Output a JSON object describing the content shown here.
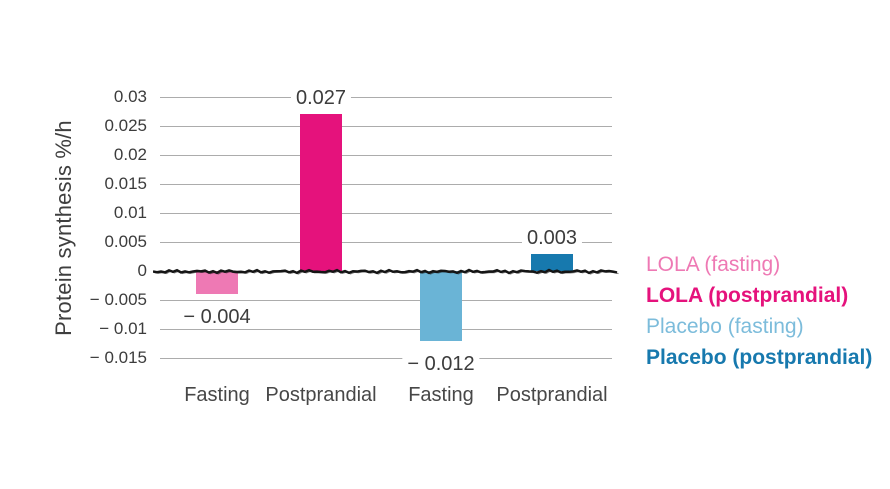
{
  "chart_data": {
    "type": "bar",
    "title": "",
    "xlabel": "",
    "ylabel": "Protein synthesis %/h",
    "ylim": [
      -0.015,
      0.03
    ],
    "ytick_step": 0.005,
    "yticks": [
      0.03,
      0.025,
      0.02,
      0.015,
      0.01,
      0.005,
      0,
      -0.005,
      -0.01,
      -0.015
    ],
    "ytick_labels": [
      "0.03",
      "0.025",
      "0.02",
      "0.015",
      "0.01",
      "0.005",
      "0",
      "− 0.005",
      "− 0.01",
      "− 0.015"
    ],
    "grid": true,
    "zero_line_style": "hand-drawn black stroke",
    "categories": [
      "Fasting",
      "Postprandial",
      "Fasting",
      "Postprandial"
    ],
    "bars": [
      {
        "name": "LOLA (fasting)",
        "category": "Fasting",
        "value": -0.004,
        "label": "− 0.004",
        "color": "#ee79b4"
      },
      {
        "name": "LOLA (postprandial)",
        "category": "Postprandial",
        "value": 0.027,
        "label": "0.027",
        "color": "#e5127c"
      },
      {
        "name": "Placebo (fasting)",
        "category": "Fasting",
        "value": -0.012,
        "label": "− 0.012",
        "color": "#6ab4d6"
      },
      {
        "name": "Placebo (postprandial)",
        "category": "Postprandial",
        "value": 0.003,
        "label": "0.003",
        "color": "#1779ae"
      }
    ],
    "legend": {
      "position": "right",
      "entries": [
        {
          "label": "LOLA (fasting)",
          "color": "#ee79b4",
          "bold": false
        },
        {
          "label": "LOLA (postprandial)",
          "color": "#e5127c",
          "bold": true
        },
        {
          "label": "Placebo (fasting)",
          "color": "#7cbcdb",
          "bold": false
        },
        {
          "label": "Placebo (postprandial)",
          "color": "#1779ae",
          "bold": true
        }
      ]
    },
    "colors": {
      "background": "#ffffff",
      "gridline": "#acacac",
      "axis_text": "#3c3c3c",
      "zero_line": "#151515"
    }
  }
}
